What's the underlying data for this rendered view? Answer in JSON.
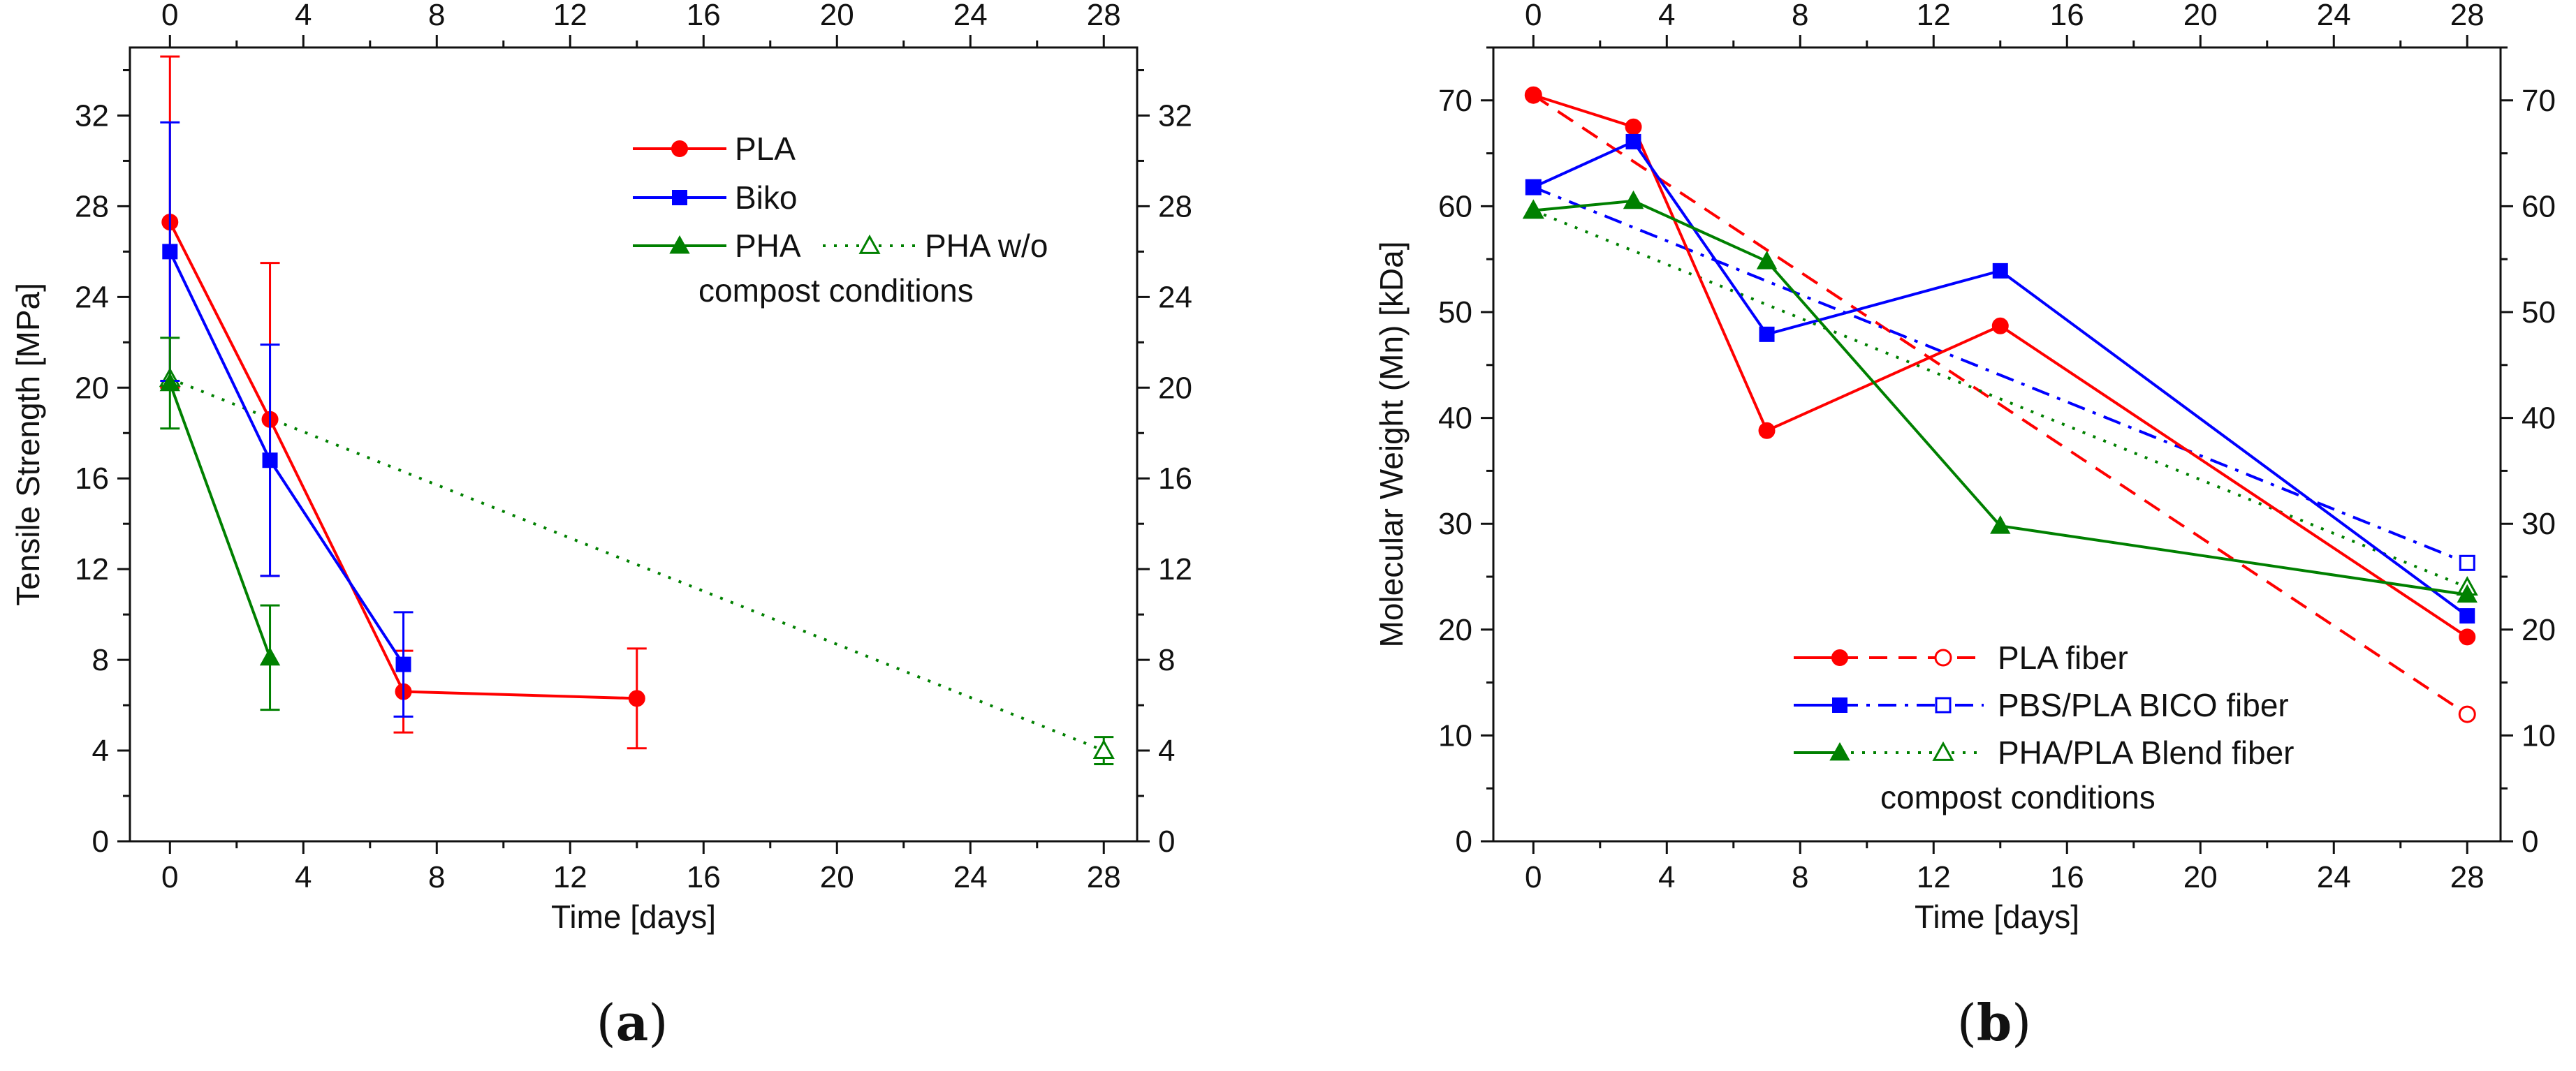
{
  "chart_data": [
    {
      "type": "line",
      "panel": "a",
      "panel_label": {
        "open": "(",
        "letter": "a",
        "close": ")"
      },
      "title": "",
      "xlabel": "Time [days]",
      "ylabel": "Tensile Strength [MPa]",
      "xlim": [
        -1.2,
        29
      ],
      "ylim": [
        0,
        35
      ],
      "xticks": [
        0,
        4,
        8,
        12,
        16,
        20,
        24,
        28
      ],
      "yticks": [
        0,
        4,
        8,
        12,
        16,
        20,
        24,
        28,
        32
      ],
      "mirror_axes": true,
      "legend_position": "top-right",
      "series": [
        {
          "name": "PLA",
          "color": "#ff0000",
          "marker": "circle",
          "filled": true,
          "dash": "solid",
          "x": [
            0,
            3,
            7,
            14
          ],
          "y": [
            27.3,
            18.6,
            6.6,
            6.3
          ],
          "err": [
            7.3,
            6.9,
            1.8,
            2.2
          ]
        },
        {
          "name": "Biko",
          "color": "#0000ff",
          "marker": "square",
          "filled": true,
          "dash": "solid",
          "x": [
            0,
            3,
            7
          ],
          "y": [
            26.0,
            16.8,
            7.8
          ],
          "err": [
            5.7,
            5.1,
            2.3
          ]
        },
        {
          "name": "PHA",
          "color": "#008000",
          "marker": "triangle",
          "filled": true,
          "dash": "solid",
          "x": [
            0,
            3
          ],
          "y": [
            20.2,
            8.1
          ],
          "err": [
            2.0,
            2.3
          ]
        },
        {
          "name": "PHA  w/o",
          "color": "#008000",
          "marker": "triangle",
          "filled": false,
          "dash": "dot",
          "x": [
            0,
            28
          ],
          "y": [
            20.4,
            4.0
          ],
          "err": [
            0,
            0.6
          ]
        }
      ],
      "legend_entries": [
        {
          "series": 0,
          "label": "PLA"
        },
        {
          "series": 1,
          "label": "Biko"
        },
        {
          "series": 2,
          "label": "PHA"
        },
        {
          "series": 3,
          "label": "PHA  w/o"
        }
      ],
      "legend_caption": "compost conditions"
    },
    {
      "type": "line",
      "panel": "b",
      "panel_label": {
        "open": "(",
        "letter": "b",
        "close": ")"
      },
      "title": "",
      "xlabel": "Time [days]",
      "ylabel": "Molecular Weight (Mn) [kDa]",
      "xlim": [
        -1.2,
        29
      ],
      "ylim": [
        0,
        75
      ],
      "xticks": [
        0,
        4,
        8,
        12,
        16,
        20,
        24,
        28
      ],
      "yticks": [
        0,
        10,
        20,
        30,
        40,
        50,
        60,
        70
      ],
      "mirror_axes": true,
      "legend_position": "bottom-center",
      "series": [
        {
          "name": "PLA fiber (compost)",
          "color": "#ff0000",
          "marker": "circle",
          "filled": true,
          "dash": "solid",
          "x": [
            0,
            3,
            7,
            14,
            28
          ],
          "y": [
            70.5,
            67.5,
            38.8,
            48.7,
            19.3
          ]
        },
        {
          "name": "PLA fiber",
          "color": "#ff0000",
          "marker": "circle",
          "filled": false,
          "dash": "dash",
          "x": [
            0,
            28
          ],
          "y": [
            70.5,
            12.0
          ]
        },
        {
          "name": "PBS/PLA BICO fiber (compost)",
          "color": "#0000ff",
          "marker": "square",
          "filled": true,
          "dash": "solid",
          "x": [
            0,
            3,
            7,
            14,
            28
          ],
          "y": [
            61.8,
            66.1,
            47.9,
            53.9,
            21.3
          ]
        },
        {
          "name": "PBS/PLA BICO fiber",
          "color": "#0000ff",
          "marker": "square",
          "filled": false,
          "dash": "dashdot",
          "x": [
            0,
            28
          ],
          "y": [
            61.8,
            26.3
          ]
        },
        {
          "name": "PHA/PLA Blend fiber (compost)",
          "color": "#008000",
          "marker": "triangle",
          "filled": true,
          "dash": "solid",
          "x": [
            0,
            3,
            7,
            14,
            28
          ],
          "y": [
            59.6,
            60.5,
            54.8,
            29.8,
            23.3
          ]
        },
        {
          "name": "PHA/PLA Blend fiber",
          "color": "#008000",
          "marker": "triangle",
          "filled": false,
          "dash": "dot",
          "x": [
            0,
            28
          ],
          "y": [
            59.6,
            24.0
          ]
        }
      ],
      "legend_entries": [
        {
          "solid": 0,
          "hollow": 1,
          "label": "PLA fiber"
        },
        {
          "solid": 2,
          "hollow": 3,
          "label": "PBS/PLA BICO fiber"
        },
        {
          "solid": 4,
          "hollow": 5,
          "label": "PHA/PLA Blend fiber"
        }
      ],
      "legend_caption": "compost conditions"
    }
  ]
}
